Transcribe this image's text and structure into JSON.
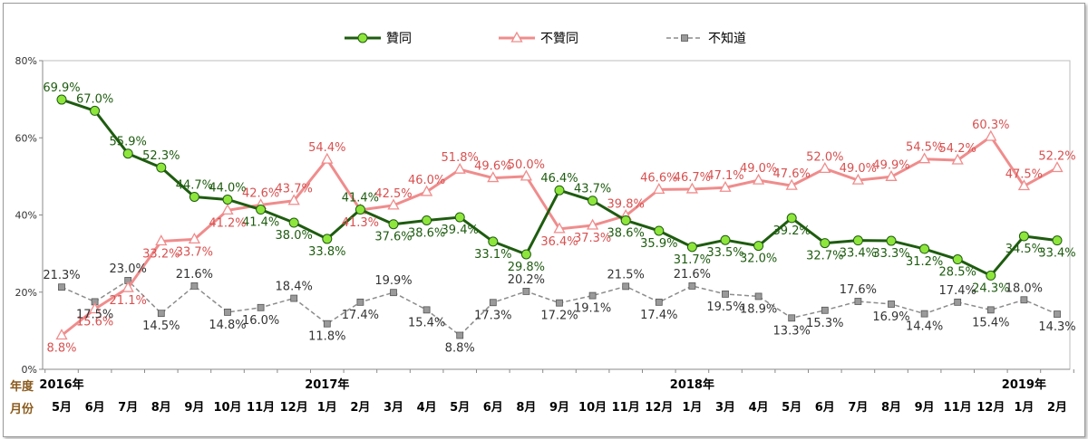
{
  "chart_data": {
    "type": "line",
    "ylim": [
      0,
      80
    ],
    "yticks": [
      "0%",
      "20%",
      "40%",
      "60%",
      "80%"
    ],
    "row_labels": {
      "year": "年度",
      "month": "月份"
    },
    "categories": [
      "5月",
      "6月",
      "7月",
      "8月",
      "9月",
      "10月",
      "11月",
      "12月",
      "1月",
      "2月",
      "3月",
      "4月",
      "5月",
      "6月",
      "8月",
      "9月",
      "10月",
      "11月",
      "12月",
      "1月",
      "3月",
      "4月",
      "5月",
      "6月",
      "7月",
      "8月",
      "9月",
      "11月",
      "12月",
      "1月",
      "2月"
    ],
    "year_marks": [
      {
        "label": "2016年",
        "index": 0
      },
      {
        "label": "2017年",
        "index": 8
      },
      {
        "label": "2018年",
        "index": 19
      },
      {
        "label": "2019年",
        "index": 29
      }
    ],
    "series": [
      {
        "name": "贊同",
        "color": "#1e5c0f",
        "marker": "circle",
        "marker_fill": "#8ee63c",
        "label_color": "#1e5c0f",
        "values": [
          69.9,
          67.0,
          55.9,
          52.3,
          44.7,
          44.0,
          41.4,
          38.0,
          33.8,
          41.4,
          37.6,
          38.6,
          39.4,
          33.1,
          29.8,
          46.4,
          43.7,
          38.6,
          35.9,
          31.7,
          33.5,
          32.0,
          39.2,
          32.7,
          33.4,
          33.3,
          31.2,
          28.5,
          24.3,
          34.5,
          33.4
        ],
        "labels": [
          "69.9%",
          "67.0%",
          "55.9%",
          "52.3%",
          "44.7%",
          "44.0%",
          "41.4%",
          "38.0%",
          "33.8%",
          "41.4%",
          "37.6%",
          "38.6%",
          "39.4%",
          "33.1%",
          "29.8%",
          "46.4%",
          "43.7%",
          "38.6%",
          "35.9%",
          "31.7%",
          "33.5%",
          "32.0%",
          "39.2%",
          "32.7%",
          "33.4%",
          "33.3%",
          "31.2%",
          "28.5%",
          "24.3%",
          "34.5%",
          "33.4%"
        ]
      },
      {
        "name": "不贊同",
        "color": "#f08c8c",
        "marker": "triangle",
        "marker_fill": "#ffffff",
        "label_color": "#d95050",
        "values": [
          8.8,
          15.6,
          21.1,
          33.2,
          33.7,
          41.2,
          42.6,
          43.7,
          54.4,
          41.3,
          42.5,
          46.0,
          51.8,
          49.6,
          50.0,
          36.4,
          37.3,
          39.8,
          46.6,
          46.7,
          47.1,
          49.0,
          47.6,
          52.0,
          49.0,
          49.9,
          54.5,
          54.2,
          60.3,
          47.5,
          52.2
        ],
        "labels": [
          "8.8%",
          "15.6%",
          "21.1%",
          "33.2%",
          "33.7%",
          "41.2%",
          "42.6%",
          "43.7%",
          "54.4%",
          "41.3%",
          "42.5%",
          "46.0%",
          "51.8%",
          "49.6%",
          "50.0%",
          "36.4%",
          "37.3%",
          "39.8%",
          "46.6%",
          "46.7%",
          "47.1%",
          "49.0%",
          "47.6%",
          "52.0%",
          "49.0%",
          "49.9%",
          "54.5%",
          "54.2%",
          "60.3%",
          "47.5%",
          "52.2%"
        ]
      },
      {
        "name": "不知道",
        "color": "#8c8c8c",
        "marker": "square",
        "marker_fill": "#9a9a9a",
        "label_color": "#333333",
        "dashed": true,
        "values": [
          21.3,
          17.5,
          23.0,
          14.5,
          21.6,
          14.8,
          16.0,
          18.4,
          11.8,
          17.4,
          19.9,
          15.4,
          8.8,
          17.3,
          20.2,
          17.2,
          19.1,
          21.5,
          17.4,
          21.6,
          19.5,
          18.9,
          13.3,
          15.3,
          17.6,
          16.9,
          14.4,
          17.4,
          15.4,
          18.0,
          14.3
        ],
        "labels": [
          "21.3%",
          "17.5%",
          "23.0%",
          "14.5%",
          "21.6%",
          "14.8%",
          "16.0%",
          "18.4%",
          "11.8%",
          "17.4%",
          "19.9%",
          "15.4%",
          "8.8%",
          "17.3%",
          "20.2%",
          "17.2%",
          "19.1%",
          "21.5%",
          "17.4%",
          "21.6%",
          "19.5%",
          "18.9%",
          "13.3%",
          "15.3%",
          "17.6%",
          "16.9%",
          "14.4%",
          "17.4%",
          "15.4%",
          "18.0%",
          "14.3%"
        ]
      }
    ]
  }
}
